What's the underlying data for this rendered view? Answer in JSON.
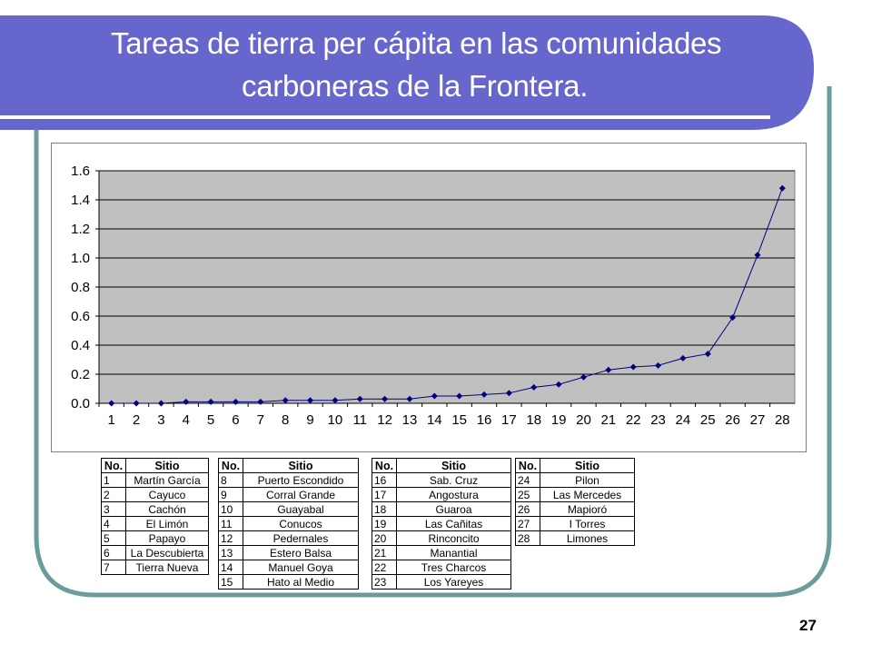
{
  "slide": {
    "title_line1": "Tareas de tierra per cápita en las comunidades",
    "title_line2": "carboneras de la Frontera.",
    "page_number": "27",
    "colors": {
      "banner": "#6666CC",
      "frame_border": "#6B9B9B",
      "plot_bg": "#C0C0C0",
      "series": "#000080"
    }
  },
  "chart_data": {
    "type": "line",
    "title": "",
    "xlabel": "",
    "ylabel": "",
    "x": [
      1,
      2,
      3,
      4,
      5,
      6,
      7,
      8,
      9,
      10,
      11,
      12,
      13,
      14,
      15,
      16,
      17,
      18,
      19,
      20,
      21,
      22,
      23,
      24,
      25,
      26,
      27,
      28
    ],
    "series": [
      {
        "values": [
          0.0,
          0.0,
          0.0,
          0.01,
          0.01,
          0.01,
          0.01,
          0.02,
          0.02,
          0.02,
          0.03,
          0.03,
          0.03,
          0.05,
          0.05,
          0.06,
          0.07,
          0.11,
          0.13,
          0.18,
          0.23,
          0.25,
          0.26,
          0.31,
          0.34,
          0.59,
          1.02,
          1.48
        ],
        "marker": "diamond"
      }
    ],
    "ylim": [
      0.0,
      1.6
    ],
    "yticks": [
      "0.0",
      "0.2",
      "0.4",
      "0.6",
      "0.8",
      "1.0",
      "1.2",
      "1.4",
      "1.6"
    ],
    "grid": true,
    "legend": "none"
  },
  "legend_tables": [
    {
      "header_no": "No.",
      "header_site": "Sitio",
      "rows": [
        {
          "no": "1",
          "site": "Martín García"
        },
        {
          "no": "2",
          "site": "Cayuco"
        },
        {
          "no": "3",
          "site": "Cachón"
        },
        {
          "no": "4",
          "site": "El Limón"
        },
        {
          "no": "5",
          "site": "Papayo"
        },
        {
          "no": "6",
          "site": "La Descubierta"
        },
        {
          "no": "7",
          "site": "Tierra Nueva"
        }
      ]
    },
    {
      "header_no": "No.",
      "header_site": "Sitio",
      "rows": [
        {
          "no": "8",
          "site": "Puerto Escondido"
        },
        {
          "no": "9",
          "site": "Corral Grande"
        },
        {
          "no": "10",
          "site": "Guayabal"
        },
        {
          "no": "11",
          "site": "Conucos"
        },
        {
          "no": "12",
          "site": "Pedernales"
        },
        {
          "no": "13",
          "site": "Estero Balsa"
        },
        {
          "no": "14",
          "site": "Manuel Goya"
        },
        {
          "no": "15",
          "site": "Hato al Medio"
        }
      ]
    },
    {
      "header_no": "No.",
      "header_site": "Sitio",
      "rows": [
        {
          "no": "16",
          "site": "Sab. Cruz"
        },
        {
          "no": "17",
          "site": "Angostura"
        },
        {
          "no": "18",
          "site": "Guaroa"
        },
        {
          "no": "19",
          "site": "Las Cañitas"
        },
        {
          "no": "20",
          "site": "Rinconcito"
        },
        {
          "no": "21",
          "site": "Manantial"
        },
        {
          "no": "22",
          "site": "Tres Charcos"
        },
        {
          "no": "23",
          "site": "Los Yareyes"
        }
      ]
    },
    {
      "header_no": "No.",
      "header_site": "Sitio",
      "rows": [
        {
          "no": "24",
          "site": "Pilon"
        },
        {
          "no": "25",
          "site": "Las Mercedes"
        },
        {
          "no": "26",
          "site": "Mapioró"
        },
        {
          "no": "27",
          "site": "I Torres"
        },
        {
          "no": "28",
          "site": "Limones"
        }
      ]
    }
  ]
}
